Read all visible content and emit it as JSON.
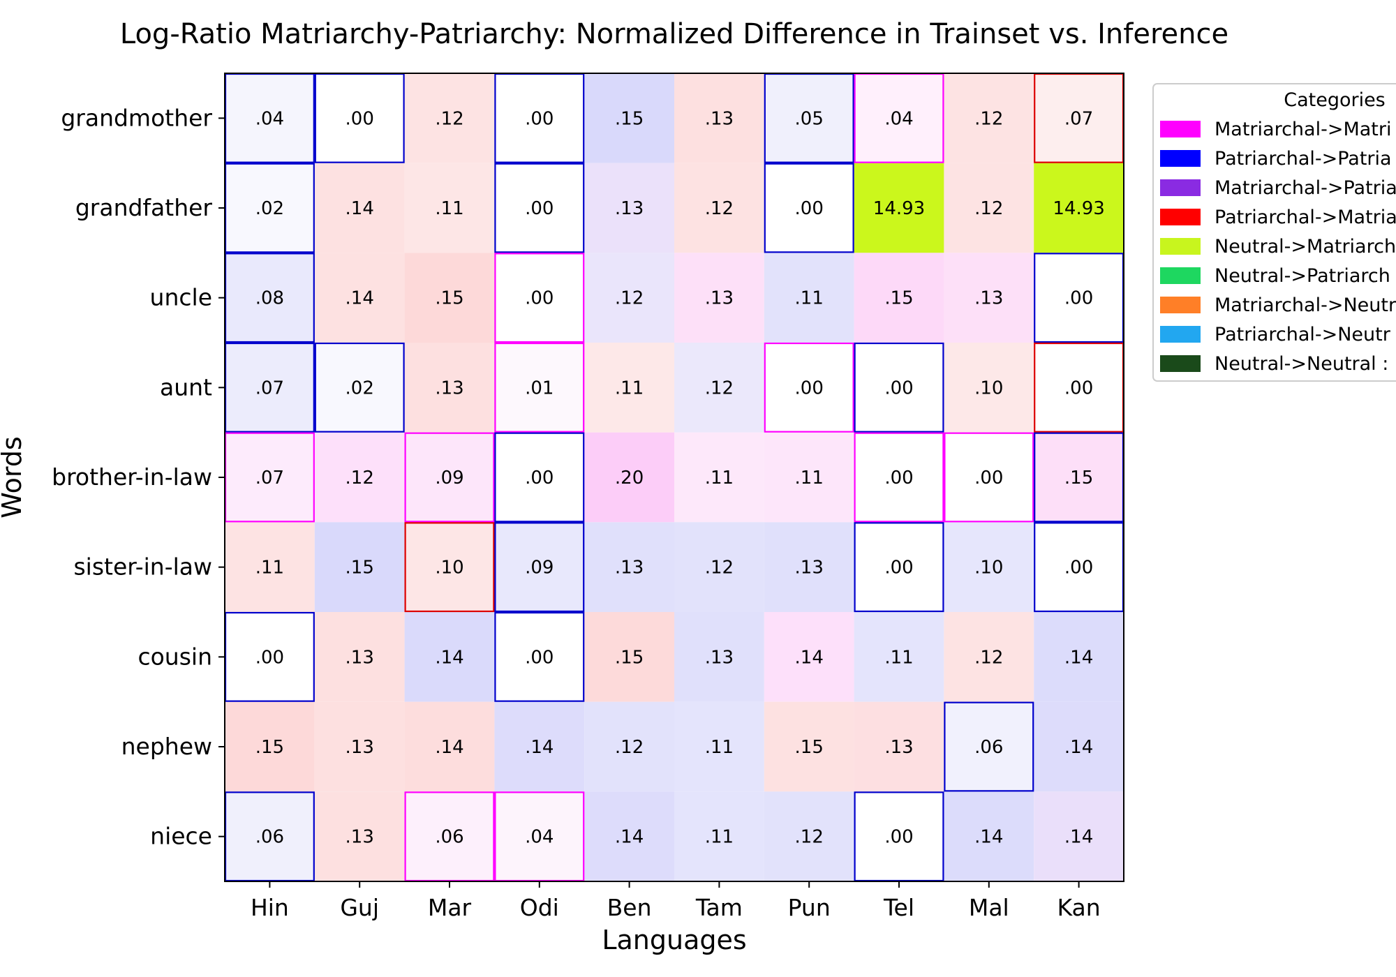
{
  "chart_data": {
    "type": "heatmap",
    "title": "Log-Ratio Matriarchy-Patriarchy: Normalized Difference in Trainset vs. Inference",
    "xlabel": "Languages",
    "ylabel": "Words",
    "x_categories": [
      "Hin",
      "Guj",
      "Mar",
      "Odi",
      "Ben",
      "Tam",
      "Pun",
      "Tel",
      "Mal",
      "Kan"
    ],
    "y_categories": [
      "grandmother",
      "grandfather",
      "uncle",
      "aunt",
      "brother-in-law",
      "sister-in-law",
      "cousin",
      "nephew",
      "niece"
    ],
    "values": [
      [
        ".04",
        ".00",
        ".12",
        ".00",
        ".15",
        ".13",
        ".05",
        ".04",
        ".12",
        ".07"
      ],
      [
        ".02",
        ".14",
        ".11",
        ".00",
        ".13",
        ".12",
        ".00",
        "14.93",
        ".12",
        "14.93"
      ],
      [
        ".08",
        ".14",
        ".15",
        ".00",
        ".12",
        ".13",
        ".11",
        ".15",
        ".13",
        ".00"
      ],
      [
        ".07",
        ".02",
        ".13",
        ".01",
        ".11",
        ".12",
        ".00",
        ".00",
        ".10",
        ".00"
      ],
      [
        ".07",
        ".12",
        ".09",
        ".00",
        ".20",
        ".11",
        ".11",
        ".00",
        ".00",
        ".15"
      ],
      [
        ".11",
        ".15",
        ".10",
        ".09",
        ".13",
        ".12",
        ".13",
        ".00",
        ".10",
        ".00"
      ],
      [
        ".00",
        ".13",
        ".14",
        ".00",
        ".15",
        ".13",
        ".14",
        ".11",
        ".12",
        ".14"
      ],
      [
        ".15",
        ".13",
        ".14",
        ".14",
        ".12",
        ".11",
        ".15",
        ".13",
        ".06",
        ".14"
      ],
      [
        ".06",
        ".13",
        ".06",
        ".04",
        ".14",
        ".11",
        ".12",
        ".00",
        ".14",
        ".14"
      ]
    ],
    "cell_fill": [
      [
        "#f5f5fd",
        "#ffffff",
        "#fde3e3",
        "#ffffff",
        "#d9d9fb",
        "#fde0e0",
        "#f0f0fc",
        "#fff0fc",
        "#fde3e3",
        "#fdeeee"
      ],
      [
        "#f8f8fe",
        "#fde1e1",
        "#fde6e6",
        "#ffffff",
        "#ebe1fa",
        "#fde2e2",
        "#ffffff",
        "#cbf71c",
        "#fde3e3",
        "#cbf71c"
      ],
      [
        "#e9e9fc",
        "#fde1e1",
        "#fdd9d9",
        "#ffffff",
        "#eae5fb",
        "#fde0f8",
        "#e2e2fb",
        "#fdd9f8",
        "#fde0f8",
        "#ffffff"
      ],
      [
        "#ececfc",
        "#f8f8fe",
        "#fde0e0",
        "#fdf8fd",
        "#fde8e8",
        "#ebe8fb",
        "#ffffff",
        "#ffffff",
        "#fde8e8",
        "#ffffff"
      ],
      [
        "#fdebfc",
        "#fde0fa",
        "#fde6fa",
        "#ffffff",
        "#fccdf8",
        "#fde8fa",
        "#fde6fa",
        "#ffffff",
        "#ffffff",
        "#fddff8"
      ],
      [
        "#fde3e3",
        "#d9d9fb",
        "#fde6e6",
        "#e8e8fc",
        "#e0e0fb",
        "#e2e2fb",
        "#e0e0fb",
        "#ffffff",
        "#e6e6fc",
        "#ffffff"
      ],
      [
        "#ffffff",
        "#fde0e0",
        "#dadafb",
        "#ffffff",
        "#fddada",
        "#e0e0fb",
        "#fde0fa",
        "#e4e4fc",
        "#fde3e3",
        "#dcdcfb"
      ],
      [
        "#fdd9d9",
        "#fde0e0",
        "#fddddd",
        "#dddcfb",
        "#e2e2fb",
        "#e4e4fc",
        "#fde1e1",
        "#fddfe1",
        "#f1f1fd",
        "#dddcfb"
      ],
      [
        "#f0f0fc",
        "#fde0e0",
        "#fdf0fc",
        "#fdf4fc",
        "#dddcfb",
        "#e4e4fc",
        "#e2e2fb",
        "#ffffff",
        "#dcdcfb",
        "#eadffa"
      ]
    ],
    "cell_border": [
      [
        "#0000cc",
        "#0000cc",
        "",
        "#0000cc",
        "",
        "",
        "#0000cc",
        "#ff00ff",
        "",
        "#dd0000"
      ],
      [
        "#0000cc",
        "",
        "",
        "#0000cc",
        "",
        "",
        "#0000cc",
        "",
        "",
        ""
      ],
      [
        "#0000cc",
        "",
        "",
        "#ff00ff",
        "",
        "",
        "",
        "",
        "",
        "#0000cc"
      ],
      [
        "#0000cc",
        "#0000cc",
        "",
        "#ff00ff",
        "",
        "",
        "#ff00ff",
        "#0000cc",
        "",
        "#dd0000"
      ],
      [
        "#ff00ff",
        "",
        "#ff00ff",
        "#0000cc",
        "",
        "",
        "",
        "#ff00ff",
        "#ff00ff",
        "#0000cc"
      ],
      [
        "",
        "",
        "#dd0000",
        "#0000cc",
        "",
        "",
        "",
        "#0000cc",
        "",
        "#0000cc"
      ],
      [
        "#0000cc",
        "",
        "",
        "#0000cc",
        "",
        "",
        "",
        "",
        "",
        ""
      ],
      [
        "",
        "",
        "",
        "",
        "",
        "",
        "",
        "",
        "#0000cc",
        ""
      ],
      [
        "#0000cc",
        "",
        "#ff00ff",
        "#ff00ff",
        "",
        "",
        "",
        "#0000cc",
        "",
        ""
      ]
    ],
    "legend": {
      "title": "Categories",
      "placement": "outside-right",
      "entries": [
        {
          "label": "Matriarchal->Matri",
          "color": "#ff00ff"
        },
        {
          "label": "Patriarchal->Patria",
          "color": "#0000ff"
        },
        {
          "label": "Matriarchal->Patria",
          "color": "#8a2be2"
        },
        {
          "label": "Patriarchal->Matria",
          "color": "#ff0000"
        },
        {
          "label": "Neutral->Matriarch",
          "color": "#c8f51e"
        },
        {
          "label": "Neutral->Patriarch",
          "color": "#1ed760"
        },
        {
          "label": "Matriarchal->Neutr",
          "color": "#ff7f27"
        },
        {
          "label": "Patriarchal->Neutr",
          "color": "#22a7f0"
        },
        {
          "label": "Neutral->Neutral :",
          "color": "#1a4a1a"
        }
      ]
    }
  }
}
